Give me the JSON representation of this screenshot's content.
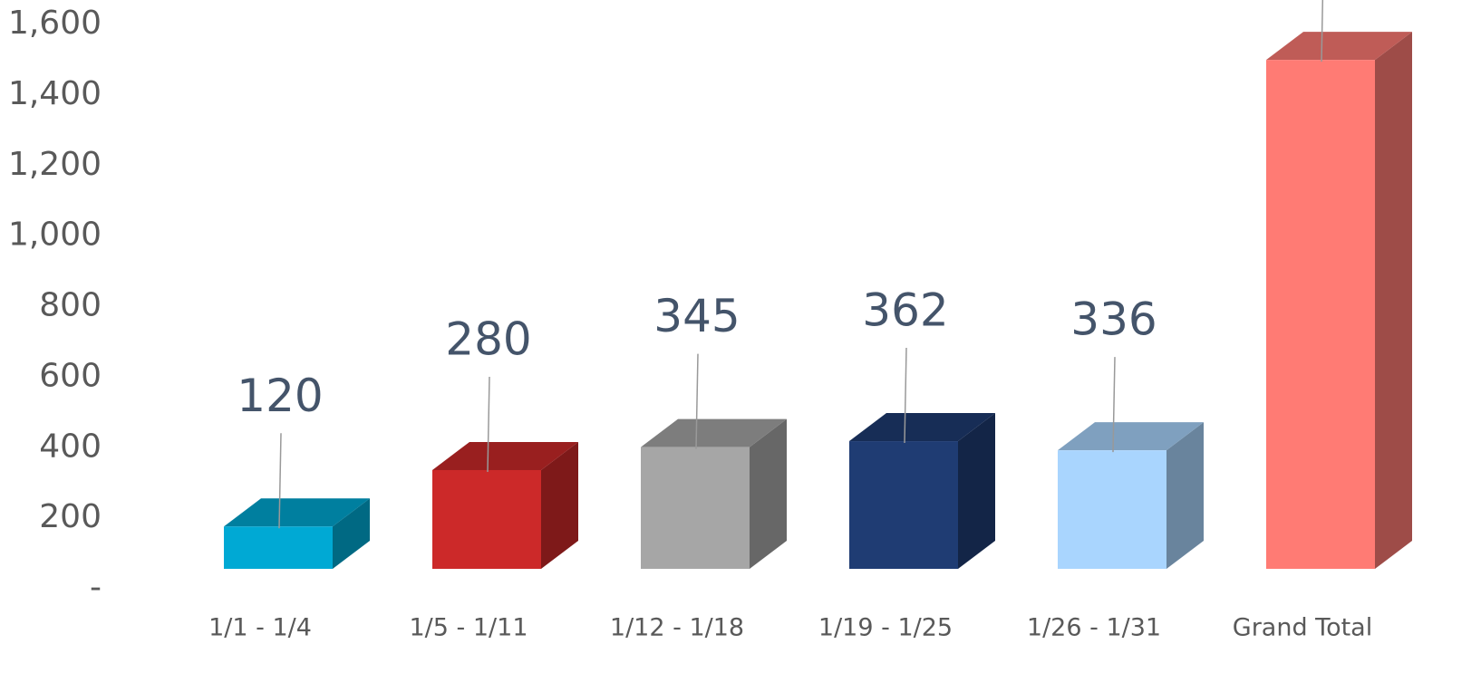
{
  "chart_data": {
    "type": "bar3d",
    "categories": [
      "1/1 - 1/4",
      "1/5 - 1/11",
      "1/12 - 1/18",
      "1/19 - 1/25",
      "1/26 - 1/31",
      "Grand Total"
    ],
    "values": [
      120,
      280,
      345,
      362,
      336,
      1443
    ],
    "colors": [
      "#00a9d4",
      "#cc2929",
      "#a6a6a6",
      "#1f3c73",
      "#a9d5fe",
      "#ff7b74"
    ],
    "ylim": [
      0,
      1600
    ],
    "yticks": [
      {
        "value": 0,
        "label": "-"
      },
      200,
      400,
      600,
      800,
      {
        "value": 1000,
        "label": "1,000"
      },
      {
        "value": 1200,
        "label": "1,200"
      },
      {
        "value": 1400,
        "label": "1,400"
      },
      {
        "value": 1600,
        "label": "1,600"
      }
    ],
    "data_labels": true
  }
}
